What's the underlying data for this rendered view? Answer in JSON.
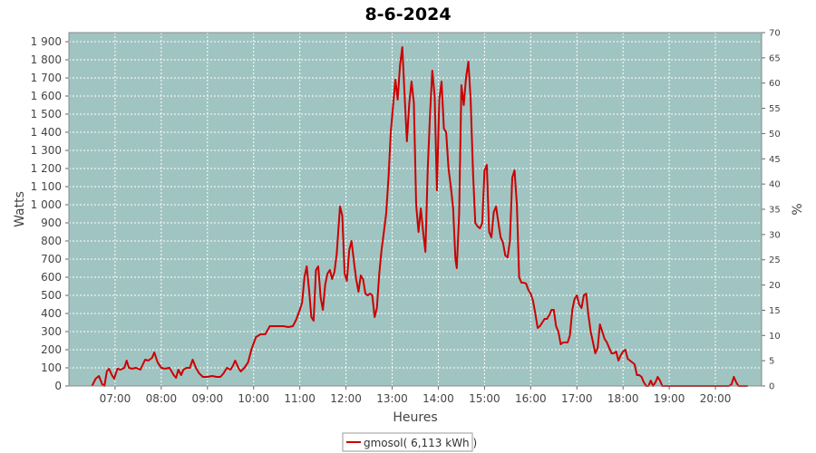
{
  "chart_data": {
    "type": "line",
    "title": "8-6-2024",
    "xlabel": "Heures",
    "ylabel": "Watts",
    "y2label": "%",
    "xlim": [
      6.0,
      21.0
    ],
    "ylim": [
      0,
      1950
    ],
    "y2lim": [
      0,
      70
    ],
    "grid": true,
    "legend_position": "bottom",
    "colors": {
      "plot_background": "#a0c4c2",
      "series": "#cc0000",
      "grid": "#ffffff"
    },
    "x_ticks": [
      {
        "x": 7,
        "label": "07:00"
      },
      {
        "x": 8,
        "label": "08:00"
      },
      {
        "x": 9,
        "label": "09:00"
      },
      {
        "x": 10,
        "label": "10:00"
      },
      {
        "x": 11,
        "label": "11:00"
      },
      {
        "x": 12,
        "label": "12:00"
      },
      {
        "x": 13,
        "label": "13:00"
      },
      {
        "x": 14,
        "label": "14:00"
      },
      {
        "x": 15,
        "label": "15:00"
      },
      {
        "x": 16,
        "label": "16:00"
      },
      {
        "x": 17,
        "label": "17:00"
      },
      {
        "x": 18,
        "label": "18:00"
      },
      {
        "x": 19,
        "label": "19:00"
      },
      {
        "x": 20,
        "label": "20:00"
      }
    ],
    "y_ticks": [
      {
        "v": 0,
        "label": "0"
      },
      {
        "v": 100,
        "label": "100"
      },
      {
        "v": 200,
        "label": "200"
      },
      {
        "v": 300,
        "label": "300"
      },
      {
        "v": 400,
        "label": "400"
      },
      {
        "v": 500,
        "label": "500"
      },
      {
        "v": 600,
        "label": "600"
      },
      {
        "v": 700,
        "label": "700"
      },
      {
        "v": 800,
        "label": "800"
      },
      {
        "v": 900,
        "label": "900"
      },
      {
        "v": 1000,
        "label": "1 000"
      },
      {
        "v": 1100,
        "label": "1 100"
      },
      {
        "v": 1200,
        "label": "1 200"
      },
      {
        "v": 1300,
        "label": "1 300"
      },
      {
        "v": 1400,
        "label": "1 400"
      },
      {
        "v": 1500,
        "label": "1 500"
      },
      {
        "v": 1600,
        "label": "1 600"
      },
      {
        "v": 1700,
        "label": "1 700"
      },
      {
        "v": 1800,
        "label": "1 800"
      },
      {
        "v": 1900,
        "label": "1 900"
      }
    ],
    "y2_ticks": [
      {
        "v": 0,
        "label": "0"
      },
      {
        "v": 5,
        "label": "5"
      },
      {
        "v": 10,
        "label": "10"
      },
      {
        "v": 15,
        "label": "15"
      },
      {
        "v": 20,
        "label": "20"
      },
      {
        "v": 25,
        "label": "25"
      },
      {
        "v": 30,
        "label": "30"
      },
      {
        "v": 35,
        "label": "35"
      },
      {
        "v": 40,
        "label": "40"
      },
      {
        "v": 45,
        "label": "45"
      },
      {
        "v": 50,
        "label": "50"
      },
      {
        "v": 55,
        "label": "55"
      },
      {
        "v": 60,
        "label": "60"
      },
      {
        "v": 65,
        "label": "65"
      },
      {
        "v": 70,
        "label": "70"
      }
    ],
    "series": [
      {
        "name": "gmosol( 6,113 kWh )",
        "points": [
          [
            6.5,
            0
          ],
          [
            6.58,
            40
          ],
          [
            6.65,
            55
          ],
          [
            6.72,
            10
          ],
          [
            6.77,
            0
          ],
          [
            6.82,
            80
          ],
          [
            6.87,
            95
          ],
          [
            6.93,
            60
          ],
          [
            6.98,
            40
          ],
          [
            7.05,
            95
          ],
          [
            7.12,
            90
          ],
          [
            7.2,
            100
          ],
          [
            7.25,
            140
          ],
          [
            7.3,
            100
          ],
          [
            7.37,
            95
          ],
          [
            7.45,
            100
          ],
          [
            7.55,
            90
          ],
          [
            7.65,
            145
          ],
          [
            7.72,
            140
          ],
          [
            7.8,
            155
          ],
          [
            7.85,
            185
          ],
          [
            7.92,
            130
          ],
          [
            8.0,
            100
          ],
          [
            8.08,
            95
          ],
          [
            8.18,
            100
          ],
          [
            8.27,
            60
          ],
          [
            8.32,
            45
          ],
          [
            8.37,
            90
          ],
          [
            8.43,
            60
          ],
          [
            8.48,
            90
          ],
          [
            8.55,
            100
          ],
          [
            8.62,
            100
          ],
          [
            8.68,
            145
          ],
          [
            8.75,
            100
          ],
          [
            8.82,
            70
          ],
          [
            8.9,
            50
          ],
          [
            9.0,
            50
          ],
          [
            9.1,
            55
          ],
          [
            9.2,
            50
          ],
          [
            9.28,
            50
          ],
          [
            9.35,
            70
          ],
          [
            9.42,
            100
          ],
          [
            9.5,
            90
          ],
          [
            9.55,
            110
          ],
          [
            9.6,
            140
          ],
          [
            9.67,
            100
          ],
          [
            9.72,
            80
          ],
          [
            9.8,
            100
          ],
          [
            9.88,
            130
          ],
          [
            9.95,
            200
          ],
          [
            10.05,
            270
          ],
          [
            10.15,
            285
          ],
          [
            10.25,
            285
          ],
          [
            10.35,
            330
          ],
          [
            10.45,
            330
          ],
          [
            10.55,
            330
          ],
          [
            10.65,
            330
          ],
          [
            10.75,
            325
          ],
          [
            10.85,
            330
          ],
          [
            10.92,
            365
          ],
          [
            11.0,
            420
          ],
          [
            11.05,
            460
          ],
          [
            11.1,
            600
          ],
          [
            11.15,
            660
          ],
          [
            11.2,
            530
          ],
          [
            11.25,
            380
          ],
          [
            11.3,
            360
          ],
          [
            11.35,
            640
          ],
          [
            11.4,
            660
          ],
          [
            11.45,
            490
          ],
          [
            11.5,
            420
          ],
          [
            11.55,
            560
          ],
          [
            11.6,
            620
          ],
          [
            11.65,
            640
          ],
          [
            11.7,
            590
          ],
          [
            11.75,
            630
          ],
          [
            11.8,
            730
          ],
          [
            11.87,
            990
          ],
          [
            11.92,
            940
          ],
          [
            11.97,
            620
          ],
          [
            12.02,
            580
          ],
          [
            12.07,
            750
          ],
          [
            12.12,
            800
          ],
          [
            12.17,
            690
          ],
          [
            12.22,
            590
          ],
          [
            12.27,
            520
          ],
          [
            12.32,
            610
          ],
          [
            12.37,
            590
          ],
          [
            12.42,
            510
          ],
          [
            12.47,
            500
          ],
          [
            12.52,
            510
          ],
          [
            12.57,
            500
          ],
          [
            12.62,
            380
          ],
          [
            12.67,
            430
          ],
          [
            12.72,
            620
          ],
          [
            12.77,
            750
          ],
          [
            12.82,
            850
          ],
          [
            12.87,
            950
          ],
          [
            12.92,
            1150
          ],
          [
            12.97,
            1400
          ],
          [
            13.02,
            1550
          ],
          [
            13.07,
            1690
          ],
          [
            13.12,
            1580
          ],
          [
            13.17,
            1770
          ],
          [
            13.22,
            1870
          ],
          [
            13.27,
            1600
          ],
          [
            13.32,
            1350
          ],
          [
            13.37,
            1560
          ],
          [
            13.42,
            1680
          ],
          [
            13.47,
            1560
          ],
          [
            13.52,
            1000
          ],
          [
            13.57,
            850
          ],
          [
            13.62,
            980
          ],
          [
            13.67,
            850
          ],
          [
            13.72,
            740
          ],
          [
            13.77,
            1200
          ],
          [
            13.82,
            1500
          ],
          [
            13.87,
            1740
          ],
          [
            13.92,
            1600
          ],
          [
            13.97,
            1080
          ],
          [
            14.02,
            1580
          ],
          [
            14.07,
            1680
          ],
          [
            14.12,
            1420
          ],
          [
            14.17,
            1400
          ],
          [
            14.22,
            1200
          ],
          [
            14.27,
            1100
          ],
          [
            14.32,
            980
          ],
          [
            14.37,
            700
          ],
          [
            14.4,
            650
          ],
          [
            14.45,
            950
          ],
          [
            14.5,
            1660
          ],
          [
            14.55,
            1550
          ],
          [
            14.6,
            1700
          ],
          [
            14.65,
            1790
          ],
          [
            14.7,
            1580
          ],
          [
            14.75,
            1180
          ],
          [
            14.8,
            900
          ],
          [
            14.85,
            880
          ],
          [
            14.9,
            870
          ],
          [
            14.95,
            900
          ],
          [
            15.0,
            1190
          ],
          [
            15.05,
            1220
          ],
          [
            15.1,
            850
          ],
          [
            15.15,
            820
          ],
          [
            15.2,
            960
          ],
          [
            15.25,
            990
          ],
          [
            15.3,
            900
          ],
          [
            15.35,
            820
          ],
          [
            15.4,
            790
          ],
          [
            15.45,
            720
          ],
          [
            15.5,
            710
          ],
          [
            15.55,
            800
          ],
          [
            15.6,
            1150
          ],
          [
            15.65,
            1190
          ],
          [
            15.7,
            1000
          ],
          [
            15.75,
            600
          ],
          [
            15.8,
            570
          ],
          [
            15.85,
            570
          ],
          [
            15.9,
            565
          ],
          [
            15.95,
            530
          ],
          [
            16.0,
            510
          ],
          [
            16.05,
            470
          ],
          [
            16.1,
            400
          ],
          [
            16.15,
            320
          ],
          [
            16.2,
            330
          ],
          [
            16.25,
            350
          ],
          [
            16.3,
            370
          ],
          [
            16.35,
            370
          ],
          [
            16.4,
            390
          ],
          [
            16.45,
            420
          ],
          [
            16.5,
            420
          ],
          [
            16.55,
            330
          ],
          [
            16.6,
            300
          ],
          [
            16.65,
            230
          ],
          [
            16.7,
            240
          ],
          [
            16.75,
            240
          ],
          [
            16.8,
            240
          ],
          [
            16.85,
            280
          ],
          [
            16.9,
            420
          ],
          [
            16.95,
            480
          ],
          [
            17.0,
            500
          ],
          [
            17.05,
            450
          ],
          [
            17.1,
            430
          ],
          [
            17.15,
            500
          ],
          [
            17.2,
            510
          ],
          [
            17.25,
            390
          ],
          [
            17.3,
            300
          ],
          [
            17.35,
            240
          ],
          [
            17.4,
            180
          ],
          [
            17.45,
            210
          ],
          [
            17.5,
            340
          ],
          [
            17.55,
            300
          ],
          [
            17.6,
            260
          ],
          [
            17.65,
            240
          ],
          [
            17.7,
            210
          ],
          [
            17.75,
            180
          ],
          [
            17.8,
            180
          ],
          [
            17.85,
            190
          ],
          [
            17.9,
            140
          ],
          [
            17.95,
            170
          ],
          [
            18.0,
            190
          ],
          [
            18.05,
            200
          ],
          [
            18.1,
            150
          ],
          [
            18.15,
            140
          ],
          [
            18.2,
            130
          ],
          [
            18.25,
            120
          ],
          [
            18.3,
            60
          ],
          [
            18.35,
            60
          ],
          [
            18.4,
            50
          ],
          [
            18.45,
            20
          ],
          [
            18.5,
            0
          ],
          [
            18.55,
            0
          ],
          [
            18.6,
            30
          ],
          [
            18.65,
            0
          ],
          [
            18.7,
            20
          ],
          [
            18.75,
            50
          ],
          [
            18.8,
            30
          ],
          [
            18.85,
            0
          ],
          [
            18.9,
            0
          ],
          [
            19.0,
            0
          ],
          [
            19.1,
            0
          ],
          [
            19.2,
            0
          ],
          [
            19.3,
            0
          ],
          [
            19.4,
            0
          ],
          [
            19.5,
            0
          ],
          [
            19.6,
            0
          ],
          [
            19.7,
            0
          ],
          [
            19.8,
            0
          ],
          [
            19.9,
            0
          ],
          [
            20.0,
            0
          ],
          [
            20.1,
            0
          ],
          [
            20.2,
            0
          ],
          [
            20.3,
            0
          ],
          [
            20.35,
            10
          ],
          [
            20.4,
            50
          ],
          [
            20.45,
            20
          ],
          [
            20.5,
            0
          ],
          [
            20.6,
            0
          ],
          [
            20.7,
            0
          ]
        ]
      }
    ]
  }
}
